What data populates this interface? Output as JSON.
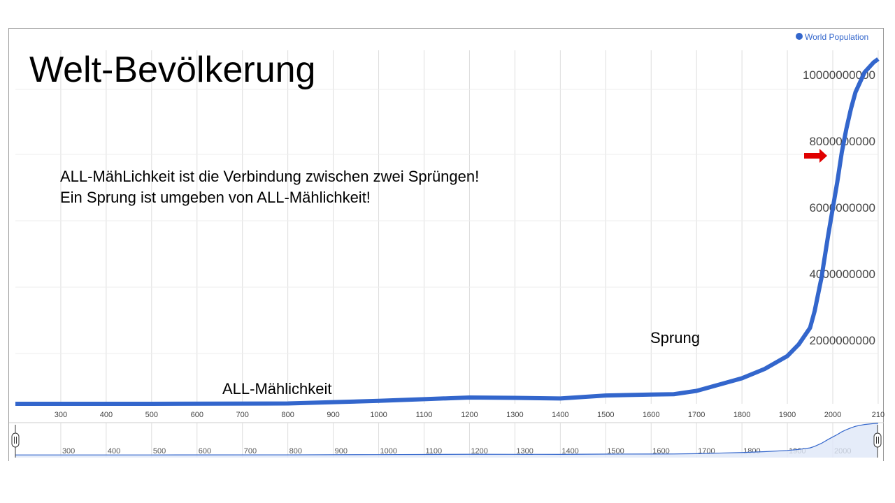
{
  "title": "Welt-Bevölkerung",
  "text_lines": [
    "ALL-MähLichkeit ist die Verbindung zwischen zwei Sprüngen!",
    "Ein Sprung ist umgeben von ALL-Mählichkeit!"
  ],
  "chart_data": {
    "type": "line",
    "title": "Welt-Bevölkerung",
    "legend": {
      "position": "top-right",
      "entries": [
        "World Population"
      ]
    },
    "series": [
      {
        "name": "World Population",
        "color": "#3366cc",
        "x": [
          200,
          500,
          800,
          1000,
          1100,
          1200,
          1300,
          1400,
          1500,
          1600,
          1650,
          1700,
          1750,
          1800,
          1850,
          1900,
          1925,
          1950,
          1960,
          1975,
          1990,
          2000,
          2010,
          2020,
          2030,
          2040,
          2050,
          2070,
          2090,
          2100
        ],
        "y": [
          190000000,
          190000000,
          220000000,
          300000000,
          350000000,
          400000000,
          390000000,
          370000000,
          460000000,
          490000000,
          500000000,
          600000000,
          790000000,
          980000000,
          1260000000,
          1650000000,
          2000000000,
          2500000000,
          3000000000,
          4000000000,
          5300000000,
          6100000000,
          6900000000,
          7800000000,
          8500000000,
          9100000000,
          9600000000,
          10200000000,
          10500000000,
          10600000000
        ]
      }
    ],
    "x_ticks": [
      "300",
      "400",
      "500",
      "600",
      "700",
      "800",
      "900",
      "1000",
      "1100",
      "1200",
      "1300",
      "1400",
      "1500",
      "1600",
      "1700",
      "1800",
      "1900",
      "2000",
      "210"
    ],
    "nav_ticks": [
      "300",
      "400",
      "500",
      "600",
      "700",
      "800",
      "900",
      "1000",
      "1100",
      "1200",
      "1300",
      "1400",
      "1500",
      "1600",
      "1700",
      "1800",
      "1900",
      "2000"
    ],
    "y_ticks": [
      "2000000000",
      "4000000000",
      "6000000000",
      "8000000000",
      "10000000000"
    ],
    "xlim": [
      200,
      2100
    ],
    "ylim": [
      0,
      10800000000
    ],
    "grid": true,
    "annotations": [
      "ALL-Mählichkeit",
      "Sprung"
    ],
    "arrow_color": "#e00000"
  }
}
